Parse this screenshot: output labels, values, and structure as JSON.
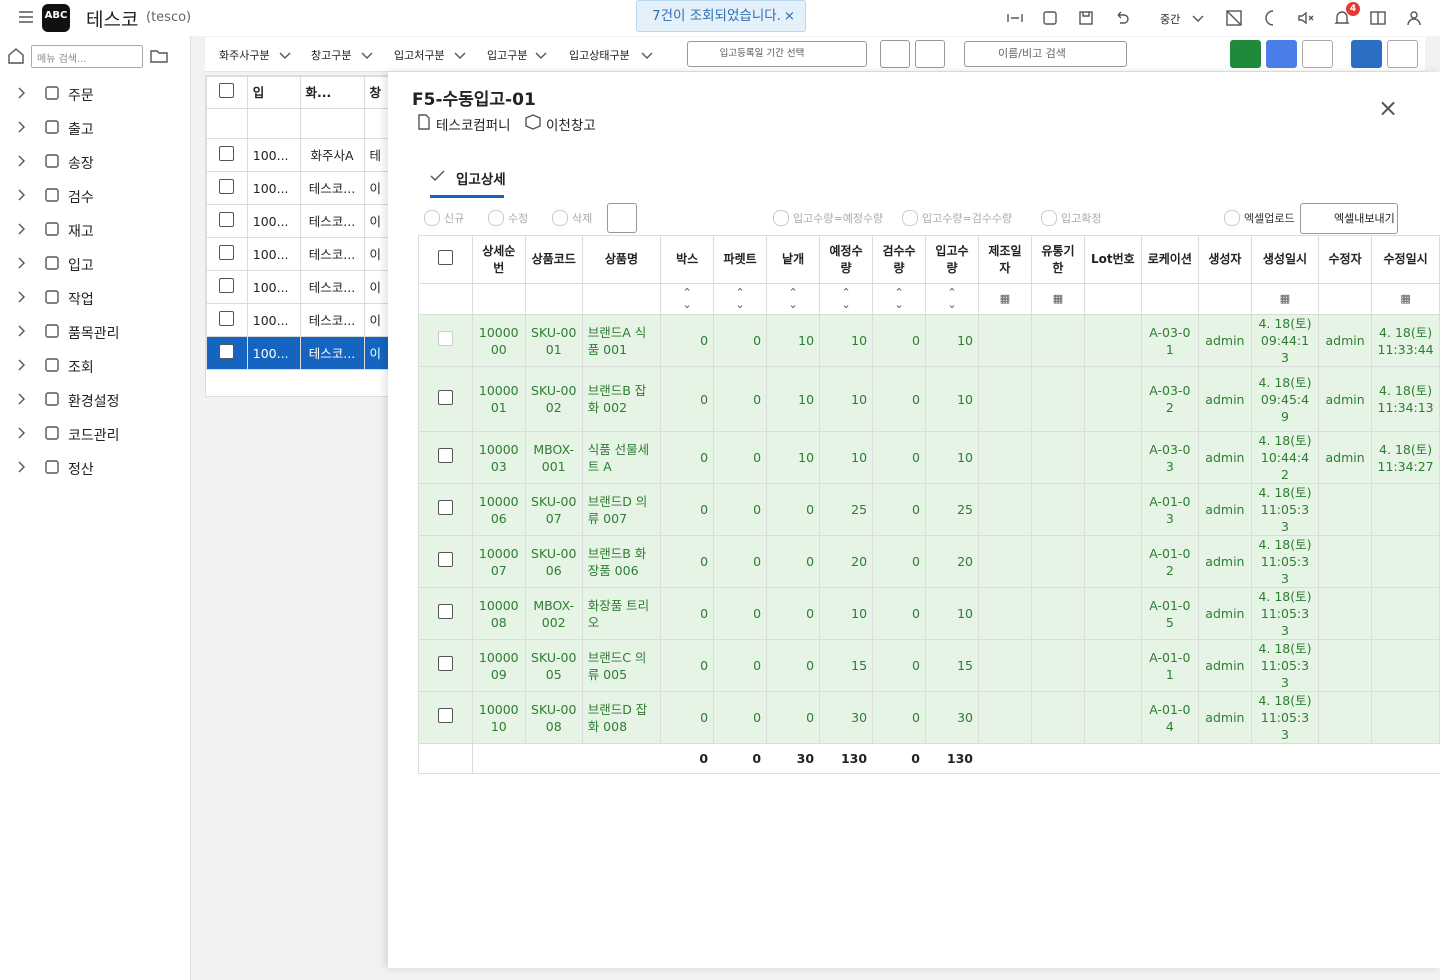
{
  "header": {
    "logo": "ABC",
    "app_name": "테스코",
    "app_code": "(tesco)",
    "toast": "7건이 조회되었습니다.",
    "size_option": "중간",
    "notification_count": "4"
  },
  "sidebar": {
    "search_placeholder": "메뉴 검색...",
    "menu": [
      "주문",
      "출고",
      "송장",
      "검수",
      "재고",
      "입고",
      "작업",
      "품목관리",
      "조회",
      "환경설정",
      "코드관리",
      "정산"
    ]
  },
  "filters": {
    "dropdowns": [
      "화주사구분",
      "창고구분",
      "입고처구분",
      "입고구분",
      "입고상태구분"
    ],
    "date_range": "입고등록일 기간 선택",
    "search_placeholder": "이름/비고 검색"
  },
  "list_table": {
    "headers": [
      "입",
      "화...",
      "창"
    ],
    "rows": [
      [
        "100...",
        "화주사A",
        "테"
      ],
      [
        "100...",
        "테스코...",
        "이"
      ],
      [
        "100...",
        "테스코...",
        "이"
      ],
      [
        "100...",
        "테스코...",
        "이"
      ],
      [
        "100...",
        "테스코...",
        "이"
      ],
      [
        "100...",
        "테스코...",
        "이"
      ],
      [
        "100...",
        "테스코...",
        "이"
      ]
    ]
  },
  "detail": {
    "title": "F5-수동입고-01",
    "company": "테스코컴퍼니",
    "warehouse": "이천창고",
    "tab": "입고상세",
    "toolbar": [
      "신규",
      "수정",
      "삭제",
      "입고수량=예정수량",
      "입고수량=검수수량",
      "입고확정",
      "엑셀업로드",
      "엑셀내보내기"
    ],
    "table": {
      "columns": [
        "상세순번",
        "상품코드",
        "상품명",
        "박스",
        "파렛트",
        "낱개",
        "예정수량",
        "검수수량",
        "입고수량",
        "제조일자",
        "유통기한",
        "Lot번호",
        "로케이션",
        "생성자",
        "생성일시",
        "수정자",
        "수정일시"
      ],
      "rows": [
        {
          "seq": "1000000",
          "code": "SKU-0001",
          "name": "브랜드A 식품 001",
          "box": 0,
          "pallet": 0,
          "each": 10,
          "planned": 10,
          "inspected": 0,
          "received": 10,
          "location": "A-03-01",
          "creator": "admin",
          "created": "4. 18(토) 09:44:13",
          "modifier": "admin",
          "modified": "4. 18(토) 11:33:44"
        },
        {
          "seq": "1000001",
          "code": "SKU-0002",
          "name": "브랜드B 잡화 002",
          "box": 0,
          "pallet": 0,
          "each": 10,
          "planned": 10,
          "inspected": 0,
          "received": 10,
          "location": "A-03-02",
          "creator": "admin",
          "created": "4. 18(토) 09:45:49",
          "modifier": "admin",
          "modified": "4. 18(토) 11:34:13"
        },
        {
          "seq": "1000003",
          "code": "MBOX-001",
          "name": "식품 선물세트 A",
          "box": 0,
          "pallet": 0,
          "each": 10,
          "planned": 10,
          "inspected": 0,
          "received": 10,
          "location": "A-03-03",
          "creator": "admin",
          "created": "4. 18(토) 10:44:42",
          "modifier": "admin",
          "modified": "4. 18(토) 11:34:27"
        },
        {
          "seq": "1000006",
          "code": "SKU-0007",
          "name": "브랜드D 의류 007",
          "box": 0,
          "pallet": 0,
          "each": 0,
          "planned": 25,
          "inspected": 0,
          "received": 25,
          "location": "A-01-03",
          "creator": "admin",
          "created": "4. 18(토) 11:05:33"
        },
        {
          "seq": "1000007",
          "code": "SKU-0006",
          "name": "브랜드B 화장품 006",
          "box": 0,
          "pallet": 0,
          "each": 0,
          "planned": 20,
          "inspected": 0,
          "received": 20,
          "location": "A-01-02",
          "creator": "admin",
          "created": "4. 18(토) 11:05:33"
        },
        {
          "seq": "1000008",
          "code": "MBOX-002",
          "name": "화장품 트리오",
          "box": 0,
          "pallet": 0,
          "each": 0,
          "planned": 10,
          "inspected": 0,
          "received": 10,
          "location": "A-01-05",
          "creator": "admin",
          "created": "4. 18(토) 11:05:33"
        },
        {
          "seq": "1000009",
          "code": "SKU-0005",
          "name": "브랜드C 의류 005",
          "box": 0,
          "pallet": 0,
          "each": 0,
          "planned": 15,
          "inspected": 0,
          "received": 15,
          "location": "A-01-01",
          "creator": "admin",
          "created": "4. 18(토) 11:05:33"
        },
        {
          "seq": "1000010",
          "code": "SKU-0008",
          "name": "브랜드D 잡화 008",
          "box": 0,
          "pallet": 0,
          "each": 0,
          "planned": 30,
          "inspected": 0,
          "received": 30,
          "location": "A-01-04",
          "creator": "admin",
          "created": "4. 18(토) 11:05:33"
        }
      ],
      "totals": {
        "box": 0,
        "pallet": 0,
        "each": 30,
        "planned": 130,
        "inspected": 0,
        "received": 130
      }
    }
  }
}
